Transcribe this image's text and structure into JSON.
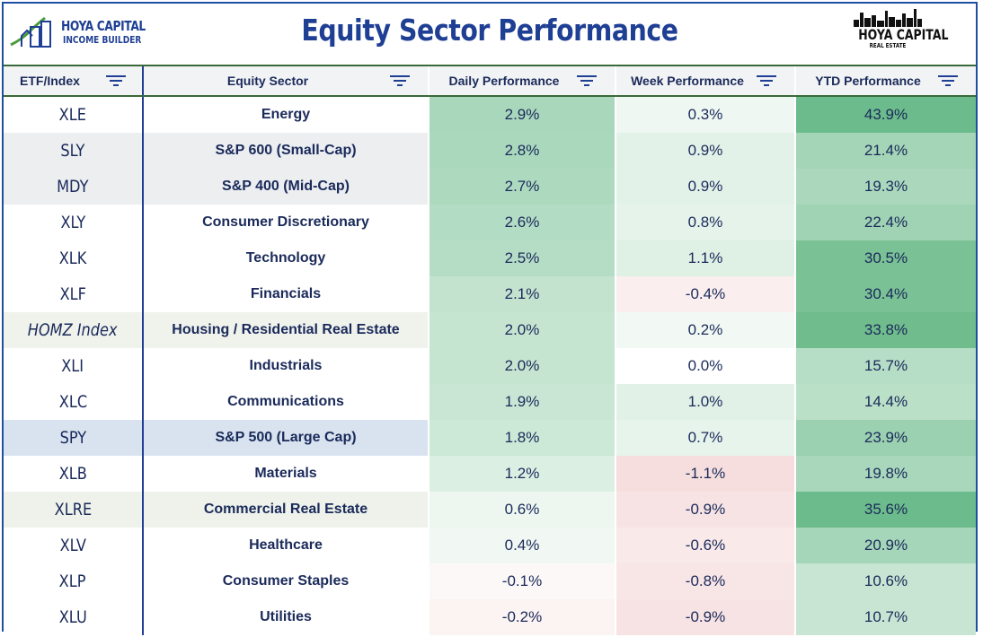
{
  "title": "Equity Sector Performance",
  "logo_left": {
    "brand": "HOYA CAPITAL",
    "sub": "INCOME BUILDER"
  },
  "logo_right": {
    "brand": "HOYA CAPITAL",
    "sub": "REAL ESTATE"
  },
  "colors": {
    "title": "#1f3f94",
    "border": "#1f4fa0",
    "header_rule": "#3a6a3a"
  },
  "chart_data": {
    "type": "table",
    "title": "Equity Sector Performance",
    "columns": [
      "ETF/Index",
      "Equity Sector",
      "Daily Performance",
      "Week Performance",
      "YTD Performance"
    ],
    "rows": [
      {
        "etf": "XLE",
        "sector": "Energy",
        "daily": "2.9%",
        "week": "0.3%",
        "ytd": "43.9%",
        "etf_bg": "#ffffff",
        "sector_bg": "#ffffff",
        "daily_bg": "#a8d7bb",
        "week_bg": "#eef7f1",
        "ytd_bg": "#6cbb8c"
      },
      {
        "etf": "SLY",
        "sector": "S&P 600 (Small-Cap)",
        "daily": "2.8%",
        "week": "0.9%",
        "ytd": "21.4%",
        "etf_bg": "#eceef0",
        "sector_bg": "#eceef0",
        "daily_bg": "#aad8bd",
        "week_bg": "#e3f2e8",
        "ytd_bg": "#a4d5b7"
      },
      {
        "etf": "MDY",
        "sector": "S&P 400 (Mid-Cap)",
        "daily": "2.7%",
        "week": "0.9%",
        "ytd": "19.3%",
        "etf_bg": "#eceef0",
        "sector_bg": "#eceef0",
        "daily_bg": "#addabf",
        "week_bg": "#e3f2e8",
        "ytd_bg": "#abd8bc"
      },
      {
        "etf": "XLY",
        "sector": "Consumer Discretionary",
        "daily": "2.6%",
        "week": "0.8%",
        "ytd": "22.4%",
        "etf_bg": "#ffffff",
        "sector_bg": "#ffffff",
        "daily_bg": "#b2dcc3",
        "week_bg": "#e5f3ea",
        "ytd_bg": "#a0d3b4"
      },
      {
        "etf": "XLK",
        "sector": "Technology",
        "daily": "2.5%",
        "week": "1.1%",
        "ytd": "30.5%",
        "etf_bg": "#ffffff",
        "sector_bg": "#ffffff",
        "daily_bg": "#b5ddc5",
        "week_bg": "#dff0e5",
        "ytd_bg": "#7bc196"
      },
      {
        "etf": "XLF",
        "sector": "Financials",
        "daily": "2.1%",
        "week": "-0.4%",
        "ytd": "30.4%",
        "etf_bg": "#ffffff",
        "sector_bg": "#ffffff",
        "daily_bg": "#c3e3cf",
        "week_bg": "#fbeeee",
        "ytd_bg": "#7bc196"
      },
      {
        "etf": "HOMZ Index",
        "sector": "Housing / Residential Real Estate",
        "daily": "2.0%",
        "week": "0.2%",
        "ytd": "33.8%",
        "etf_bg": "#f0f2ec",
        "sector_bg": "#f0f2ec",
        "daily_bg": "#c6e5d1",
        "week_bg": "#f2f9f4",
        "ytd_bg": "#70bc8d",
        "italic": true
      },
      {
        "etf": "XLI",
        "sector": "Industrials",
        "daily": "2.0%",
        "week": "0.0%",
        "ytd": "15.7%",
        "etf_bg": "#ffffff",
        "sector_bg": "#ffffff",
        "daily_bg": "#c6e5d1",
        "week_bg": "#ffffff",
        "ytd_bg": "#b6ddc5"
      },
      {
        "etf": "XLC",
        "sector": "Communications",
        "daily": "1.9%",
        "week": "1.0%",
        "ytd": "14.4%",
        "etf_bg": "#ffffff",
        "sector_bg": "#ffffff",
        "daily_bg": "#c9e6d4",
        "week_bg": "#e1f1e7",
        "ytd_bg": "#bae0c8"
      },
      {
        "etf": "SPY",
        "sector": "S&P 500 (Large Cap)",
        "daily": "1.8%",
        "week": "0.7%",
        "ytd": "23.9%",
        "etf_bg": "#d9e3f0",
        "sector_bg": "#d9e3f0",
        "daily_bg": "#cce8d6",
        "week_bg": "#e7f4ec",
        "ytd_bg": "#9bd0b0"
      },
      {
        "etf": "XLB",
        "sector": "Materials",
        "daily": "1.2%",
        "week": "-1.1%",
        "ytd": "19.8%",
        "etf_bg": "#ffffff",
        "sector_bg": "#ffffff",
        "daily_bg": "#dcefe3",
        "week_bg": "#f6dede",
        "ytd_bg": "#a9d7bb"
      },
      {
        "etf": "XLRE",
        "sector": "Commercial Real Estate",
        "daily": "0.6%",
        "week": "-0.9%",
        "ytd": "35.6%",
        "etf_bg": "#eef2ea",
        "sector_bg": "#eef2ea",
        "daily_bg": "#edf7f0",
        "week_bg": "#f7e3e3",
        "ytd_bg": "#6cbb8c"
      },
      {
        "etf": "XLV",
        "sector": "Healthcare",
        "daily": "0.4%",
        "week": "-0.6%",
        "ytd": "20.9%",
        "etf_bg": "#ffffff",
        "sector_bg": "#ffffff",
        "daily_bg": "#f1f8f3",
        "week_bg": "#f9e9e9",
        "ytd_bg": "#a6d6b9"
      },
      {
        "etf": "XLP",
        "sector": "Consumer Staples",
        "daily": "-0.1%",
        "week": "-0.8%",
        "ytd": "10.6%",
        "etf_bg": "#ffffff",
        "sector_bg": "#ffffff",
        "daily_bg": "#fdf8f8",
        "week_bg": "#f8e5e5",
        "ytd_bg": "#c7e5d2"
      },
      {
        "etf": "XLU",
        "sector": "Utilities",
        "daily": "-0.2%",
        "week": "-0.9%",
        "ytd": "10.7%",
        "etf_bg": "#ffffff",
        "sector_bg": "#ffffff",
        "daily_bg": "#fcf3f3",
        "week_bg": "#f7e3e3",
        "ytd_bg": "#c7e5d2"
      }
    ]
  }
}
